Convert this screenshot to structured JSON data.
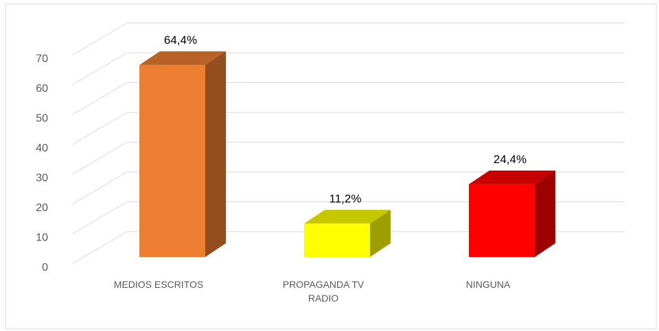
{
  "chart_data": {
    "type": "bar3d",
    "categories": [
      "MEDIOS ESCRITOS",
      "PROPAGANDA TV RADIO",
      "NINGUNA"
    ],
    "values": [
      64.4,
      11.2,
      24.4
    ],
    "value_labels": [
      "64,4%",
      "11,2%",
      "24,4%"
    ],
    "colors": [
      "#ED7D31",
      "#FFFF00",
      "#FF0000"
    ],
    "ylim": [
      0,
      70
    ],
    "yticks": [
      0,
      10,
      20,
      30,
      40,
      50,
      60,
      70
    ],
    "grid": true
  }
}
